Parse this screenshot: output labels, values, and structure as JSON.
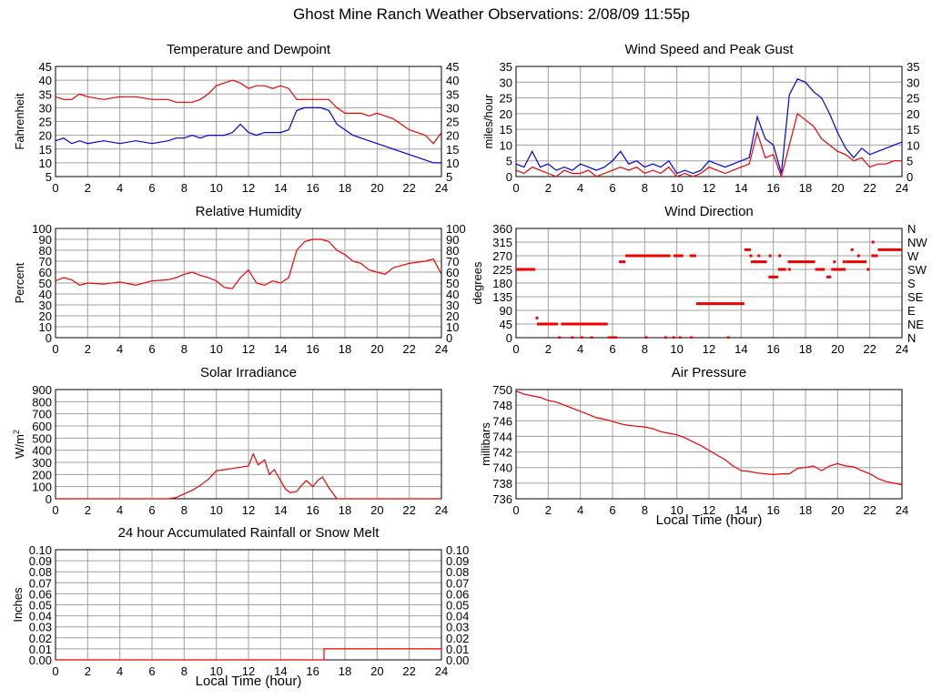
{
  "page_title": "Ghost Mine Ranch Weather Observations: 2/08/09 11:55p",
  "colors": {
    "red": "#ee0000",
    "blue": "#0000dd",
    "grid": "#a0a0a0",
    "axis": "#000000"
  },
  "chart_data": [
    {
      "id": "temperature",
      "type": "line",
      "title": "Temperature and Dewpoint",
      "xlabel": "",
      "ylabel": "Fahrenheit",
      "xlim": [
        0,
        24
      ],
      "ylim": [
        5,
        45
      ],
      "xticks": [
        "0",
        "2",
        "4",
        "6",
        "8",
        "10",
        "12",
        "14",
        "16",
        "18",
        "20",
        "22",
        "24"
      ],
      "yticks": [
        "5",
        "10",
        "15",
        "20",
        "25",
        "30",
        "35",
        "40",
        "45"
      ],
      "right_axis": true,
      "series": [
        {
          "color": "red",
          "x": [
            0,
            0.5,
            1,
            1.5,
            2,
            3,
            4,
            5,
            6,
            7,
            7.5,
            8,
            8.5,
            9,
            9.5,
            10,
            10.5,
            11,
            11.5,
            12,
            12.5,
            13,
            13.5,
            14,
            14.5,
            15,
            15.5,
            16,
            16.5,
            17,
            17.5,
            18,
            18.5,
            19,
            19.5,
            20,
            20.5,
            21,
            21.5,
            22,
            22.5,
            23,
            23.5,
            24
          ],
          "y": [
            34,
            33,
            33,
            35,
            34,
            33,
            34,
            34,
            33,
            33,
            32,
            32,
            32,
            33,
            35,
            38,
            39,
            40,
            39,
            37,
            38,
            38,
            37,
            38,
            37,
            33,
            33,
            33,
            33,
            33,
            30,
            28,
            28,
            28,
            27,
            28,
            27,
            26,
            24,
            22,
            21,
            20,
            17,
            21
          ]
        },
        {
          "color": "blue",
          "x": [
            0,
            0.5,
            1,
            1.5,
            2,
            3,
            4,
            5,
            6,
            7,
            7.5,
            8,
            8.5,
            9,
            9.5,
            10,
            10.5,
            11,
            11.5,
            12,
            12.5,
            13,
            13.5,
            14,
            14.5,
            15,
            15.5,
            16,
            16.5,
            17,
            17.5,
            18,
            18.5,
            19,
            19.5,
            20,
            20.5,
            21,
            21.5,
            22,
            22.5,
            23,
            23.5,
            24
          ],
          "y": [
            18,
            19,
            17,
            18,
            17,
            18,
            17,
            18,
            17,
            18,
            19,
            19,
            20,
            19,
            20,
            20,
            20,
            21,
            24,
            21,
            20,
            21,
            21,
            21,
            22,
            29,
            30,
            30,
            30,
            29,
            24,
            22,
            20,
            19,
            18,
            17,
            16,
            15,
            14,
            13,
            12,
            11,
            10,
            10
          ]
        }
      ]
    },
    {
      "id": "wind",
      "type": "line",
      "title": "Wind Speed and Peak Gust",
      "xlabel": "",
      "ylabel": "miles/hour",
      "xlim": [
        0,
        24
      ],
      "ylim": [
        0,
        35
      ],
      "xticks": [
        "0",
        "2",
        "4",
        "6",
        "8",
        "10",
        "12",
        "14",
        "16",
        "18",
        "20",
        "22",
        "24"
      ],
      "yticks": [
        "0",
        "5",
        "10",
        "15",
        "20",
        "25",
        "30",
        "35"
      ],
      "right_axis": true,
      "series": [
        {
          "color": "red",
          "x": [
            0,
            0.5,
            1,
            1.5,
            2,
            2.5,
            3,
            3.5,
            4,
            4.5,
            5,
            5.5,
            6,
            6.5,
            7,
            7.5,
            8,
            8.5,
            9,
            9.5,
            10,
            10.5,
            11,
            11.5,
            12,
            12.5,
            13,
            13.5,
            14,
            14.5,
            15,
            15.5,
            16,
            16.5,
            17,
            17.5,
            18,
            18.5,
            19,
            19.5,
            20,
            20.5,
            21,
            21.5,
            22,
            22.5,
            23,
            23.5,
            24
          ],
          "y": [
            2,
            1,
            3,
            2,
            1,
            0,
            2,
            1,
            1,
            2,
            0,
            1,
            2,
            3,
            2,
            3,
            1,
            2,
            1,
            3,
            0,
            1,
            0,
            1,
            3,
            2,
            1,
            2,
            3,
            4,
            14,
            6,
            7,
            0,
            10,
            20,
            18,
            16,
            12,
            10,
            8,
            7,
            5,
            6,
            3,
            4,
            4,
            5,
            5
          ]
        },
        {
          "color": "blue",
          "x": [
            0,
            0.5,
            1,
            1.5,
            2,
            2.5,
            3,
            3.5,
            4,
            4.5,
            5,
            5.5,
            6,
            6.5,
            7,
            7.5,
            8,
            8.5,
            9,
            9.5,
            10,
            10.5,
            11,
            11.5,
            12,
            12.5,
            13,
            13.5,
            14,
            14.5,
            15,
            15.5,
            16,
            16.5,
            17,
            17.5,
            18,
            18.5,
            19,
            19.5,
            20,
            20.5,
            21,
            21.5,
            22,
            22.5,
            23,
            23.5,
            24
          ],
          "y": [
            4,
            3,
            8,
            3,
            4,
            2,
            3,
            2,
            4,
            3,
            2,
            3,
            5,
            8,
            4,
            5,
            3,
            4,
            3,
            5,
            1,
            2,
            1,
            2,
            5,
            4,
            3,
            4,
            5,
            6,
            19,
            12,
            10,
            1,
            26,
            31,
            30,
            27,
            25,
            20,
            14,
            9,
            6,
            9,
            7,
            8,
            9,
            10,
            11
          ]
        }
      ]
    },
    {
      "id": "humidity",
      "type": "line",
      "title": "Relative Humidity",
      "xlabel": "",
      "ylabel": "Percent",
      "xlim": [
        0,
        24
      ],
      "ylim": [
        0,
        100
      ],
      "xticks": [
        "0",
        "2",
        "4",
        "6",
        "8",
        "10",
        "12",
        "14",
        "16",
        "18",
        "20",
        "22",
        "24"
      ],
      "yticks": [
        "0",
        "10",
        "20",
        "30",
        "40",
        "50",
        "60",
        "70",
        "80",
        "90",
        "100"
      ],
      "right_axis": true,
      "series": [
        {
          "color": "red",
          "x": [
            0,
            0.5,
            1,
            1.5,
            2,
            3,
            4,
            5,
            6,
            7,
            7.5,
            8,
            8.5,
            9,
            9.5,
            10,
            10.5,
            11,
            11.5,
            12,
            12.5,
            13,
            13.5,
            14,
            14.5,
            15,
            15.5,
            16,
            16.5,
            17,
            17.5,
            18,
            18.5,
            19,
            19.5,
            20,
            20.5,
            21,
            21.5,
            22,
            22.5,
            23,
            23.5,
            24
          ],
          "y": [
            52,
            55,
            53,
            48,
            50,
            49,
            51,
            48,
            52,
            53,
            55,
            58,
            60,
            57,
            55,
            52,
            46,
            45,
            55,
            62,
            50,
            48,
            52,
            50,
            55,
            80,
            88,
            90,
            90,
            88,
            80,
            76,
            70,
            68,
            62,
            60,
            58,
            64,
            66,
            68,
            69,
            70,
            72,
            58
          ]
        }
      ]
    },
    {
      "id": "direction",
      "type": "scatter",
      "title": "Wind Direction",
      "xlabel": "",
      "ylabel": "degrees",
      "xlim": [
        0,
        24
      ],
      "ylim": [
        0,
        360
      ],
      "xticks": [
        "0",
        "2",
        "4",
        "6",
        "8",
        "10",
        "12",
        "14",
        "16",
        "18",
        "20",
        "22",
        "24"
      ],
      "yticks": [
        "0",
        "45",
        "90",
        "135",
        "180",
        "225",
        "270",
        "315",
        "360"
      ],
      "right_labels": [
        "N",
        "NE",
        "E",
        "SE",
        "S",
        "SW",
        "W",
        "NW",
        "N"
      ],
      "segments": [
        {
          "x0": 0,
          "x1": 1.2,
          "y": 225
        },
        {
          "x0": 1.3,
          "x1": 2.6,
          "y": 45
        },
        {
          "x0": 2.8,
          "x1": 5.7,
          "y": 45
        },
        {
          "x0": 5.7,
          "x1": 6.3,
          "y": 0
        },
        {
          "x0": 6.4,
          "x1": 6.8,
          "y": 250
        },
        {
          "x0": 6.8,
          "x1": 9.6,
          "y": 270
        },
        {
          "x0": 9.8,
          "x1": 10.4,
          "y": 270
        },
        {
          "x0": 10.8,
          "x1": 11.2,
          "y": 270
        },
        {
          "x0": 11.2,
          "x1": 14.2,
          "y": 112
        },
        {
          "x0": 14.2,
          "x1": 14.6,
          "y": 290
        },
        {
          "x0": 14.6,
          "x1": 15.6,
          "y": 250
        },
        {
          "x0": 15.7,
          "x1": 16.3,
          "y": 200
        },
        {
          "x0": 16.3,
          "x1": 16.8,
          "y": 225
        },
        {
          "x0": 16.9,
          "x1": 18.6,
          "y": 250
        },
        {
          "x0": 18.6,
          "x1": 19.2,
          "y": 225
        },
        {
          "x0": 19.3,
          "x1": 19.6,
          "y": 200
        },
        {
          "x0": 19.6,
          "x1": 20.5,
          "y": 225
        },
        {
          "x0": 20.5,
          "x1": 21.8,
          "y": 250
        },
        {
          "x0": 22.1,
          "x1": 22.5,
          "y": 270
        },
        {
          "x0": 22.5,
          "x1": 24,
          "y": 290
        }
      ],
      "points": [
        {
          "x": 1.3,
          "y": 65
        },
        {
          "x": 2.7,
          "y": 0
        },
        {
          "x": 3.5,
          "y": 0
        },
        {
          "x": 4.1,
          "y": 0
        },
        {
          "x": 4.7,
          "y": 0
        },
        {
          "x": 8.1,
          "y": 0
        },
        {
          "x": 9.3,
          "y": 0
        },
        {
          "x": 9.8,
          "y": 0
        },
        {
          "x": 10.2,
          "y": 0
        },
        {
          "x": 10.9,
          "y": 0
        },
        {
          "x": 13.2,
          "y": 0
        },
        {
          "x": 14.6,
          "y": 270
        },
        {
          "x": 15.1,
          "y": 270
        },
        {
          "x": 15.8,
          "y": 270
        },
        {
          "x": 16.4,
          "y": 270
        },
        {
          "x": 17.0,
          "y": 225
        },
        {
          "x": 19.8,
          "y": 250
        },
        {
          "x": 20.4,
          "y": 250
        },
        {
          "x": 20.9,
          "y": 290
        },
        {
          "x": 21.3,
          "y": 270
        },
        {
          "x": 21.9,
          "y": 225
        },
        {
          "x": 22.2,
          "y": 315
        }
      ]
    },
    {
      "id": "solar",
      "type": "line",
      "title": "Solar Irradiance",
      "xlabel": "",
      "ylabel": "W/m",
      "ylabel_sup": "2",
      "xlim": [
        0,
        24
      ],
      "ylim": [
        0,
        900
      ],
      "xticks": [
        "0",
        "2",
        "4",
        "6",
        "8",
        "10",
        "12",
        "14",
        "16",
        "18",
        "20",
        "22",
        "24"
      ],
      "yticks": [
        "0",
        "100",
        "200",
        "300",
        "400",
        "500",
        "600",
        "700",
        "800",
        "900"
      ],
      "right_axis": false,
      "series": [
        {
          "color": "red",
          "x": [
            0,
            6,
            7,
            7.5,
            8,
            8.5,
            9,
            9.5,
            10,
            10.5,
            11,
            11.5,
            12,
            12.3,
            12.6,
            13,
            13.3,
            13.6,
            14,
            14.3,
            14.6,
            15,
            15.3,
            15.6,
            16,
            16.3,
            16.6,
            17,
            17.5,
            18,
            24
          ],
          "y": [
            0,
            0,
            0,
            10,
            40,
            70,
            110,
            160,
            230,
            240,
            250,
            260,
            270,
            370,
            280,
            320,
            200,
            240,
            150,
            80,
            50,
            60,
            110,
            150,
            100,
            150,
            180,
            90,
            0,
            0,
            0
          ]
        }
      ]
    },
    {
      "id": "pressure",
      "type": "line",
      "title": "Air Pressure",
      "xlabel": "Local Time (hour)",
      "ylabel": "millibars",
      "xlim": [
        0,
        24
      ],
      "ylim": [
        736,
        750
      ],
      "xticks": [
        "0",
        "2",
        "4",
        "6",
        "8",
        "10",
        "12",
        "14",
        "16",
        "18",
        "20",
        "22",
        "24"
      ],
      "yticks": [
        "736",
        "738",
        "740",
        "742",
        "744",
        "746",
        "748",
        "750"
      ],
      "right_axis": false,
      "series": [
        {
          "color": "red",
          "x": [
            0,
            0.5,
            1,
            1.5,
            2,
            2.5,
            3,
            3.5,
            4,
            4.5,
            5,
            5.5,
            6,
            6.5,
            7,
            7.5,
            8,
            8.5,
            9,
            9.5,
            10,
            10.5,
            11,
            11.5,
            12,
            12.5,
            13,
            13.5,
            14,
            14.5,
            15,
            15.5,
            16,
            16.5,
            17,
            17.5,
            18,
            18.5,
            19,
            19.5,
            20,
            20.5,
            21,
            21.5,
            22,
            22.5,
            23,
            23.5,
            24
          ],
          "y": [
            749.8,
            749.4,
            749.2,
            749,
            748.6,
            748.4,
            748,
            747.6,
            747.2,
            746.8,
            746.4,
            746.2,
            745.9,
            745.6,
            745.4,
            745.3,
            745.2,
            745,
            744.6,
            744.4,
            744.2,
            743.8,
            743.3,
            742.8,
            742.2,
            741.6,
            741,
            740.2,
            739.6,
            739.5,
            739.3,
            739.2,
            739.1,
            739.2,
            739.2,
            739.9,
            740,
            740.2,
            739.6,
            740.2,
            740.5,
            740.2,
            740.1,
            739.6,
            739.2,
            738.6,
            738.2,
            738,
            737.8
          ]
        }
      ]
    },
    {
      "id": "rainfall",
      "type": "line",
      "title": "24 hour Accumulated Rainfall or Snow Melt",
      "xlabel": "Local Time (hour)",
      "ylabel": "Inches",
      "xlim": [
        0,
        24
      ],
      "ylim": [
        0,
        0.1
      ],
      "xticks": [
        "0",
        "2",
        "4",
        "6",
        "8",
        "10",
        "12",
        "14",
        "16",
        "18",
        "20",
        "22",
        "24"
      ],
      "yticks": [
        "0.00",
        "0.01",
        "0.02",
        "0.03",
        "0.04",
        "0.05",
        "0.06",
        "0.07",
        "0.08",
        "0.09",
        "0.10"
      ],
      "right_axis": true,
      "series": [
        {
          "color": "red",
          "x": [
            0,
            16.7,
            16.7,
            24
          ],
          "y": [
            0,
            0,
            0.01,
            0.01
          ]
        }
      ]
    }
  ]
}
